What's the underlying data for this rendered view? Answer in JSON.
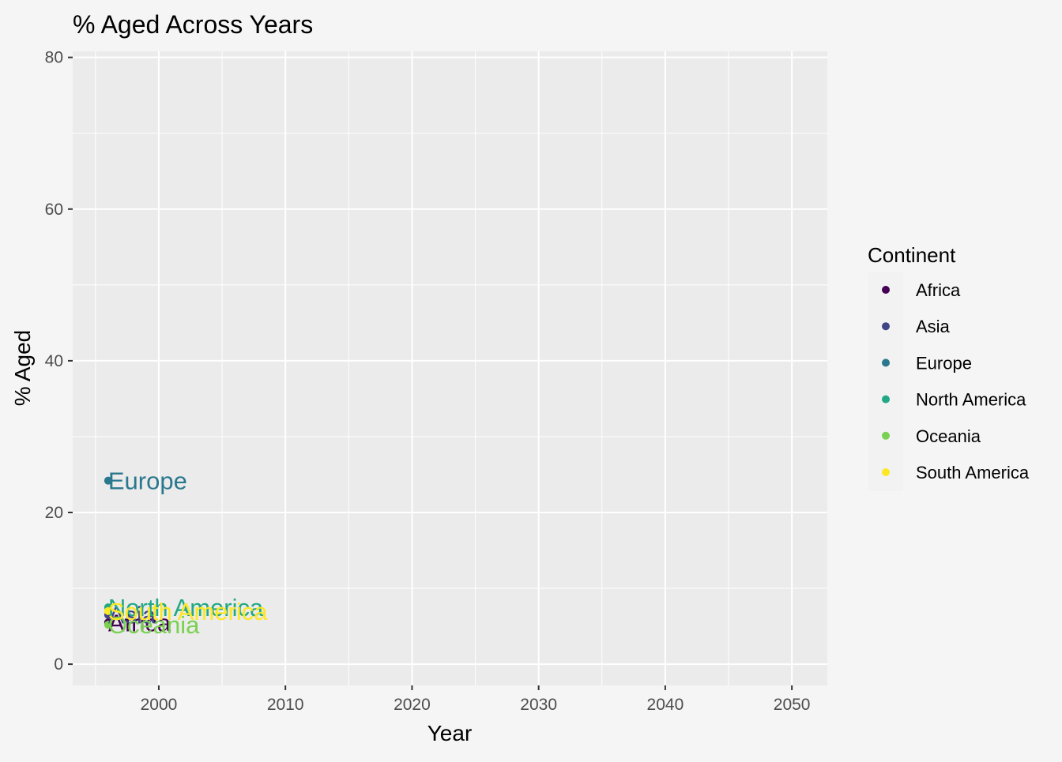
{
  "chart_data": {
    "type": "scatter",
    "title": "% Aged Across Years",
    "xlabel": "Year",
    "ylabel": "% Aged",
    "xlim": [
      1993.2,
      2052.8
    ],
    "ylim": [
      -2.8,
      80.8
    ],
    "x_ticks": [
      2000,
      2010,
      2020,
      2030,
      2040,
      2050
    ],
    "y_ticks": [
      0,
      20,
      40,
      60,
      80
    ],
    "x_minor_ticks": [
      1995,
      2005,
      2015,
      2025,
      2035,
      2045
    ],
    "y_minor_ticks": [
      10,
      30,
      50,
      70
    ],
    "grid": true,
    "legend": {
      "title": "Continent",
      "position": "right"
    },
    "series": [
      {
        "name": "Africa",
        "color": "#440154",
        "points": [
          {
            "x": 1996,
            "y": 5.5
          }
        ],
        "label": "Africa"
      },
      {
        "name": "Asia",
        "color": "#414487",
        "points": [
          {
            "x": 1996,
            "y": 6.5
          }
        ],
        "label": "Asia"
      },
      {
        "name": "Europe",
        "color": "#2A788E",
        "points": [
          {
            "x": 1996,
            "y": 24.2
          }
        ],
        "label": "Europe"
      },
      {
        "name": "North America",
        "color": "#22A884",
        "points": [
          {
            "x": 1996,
            "y": 7.5
          }
        ],
        "label": "North America"
      },
      {
        "name": "Oceania",
        "color": "#7AD151",
        "points": [
          {
            "x": 1996,
            "y": 5.2
          }
        ],
        "label": "Oceania"
      },
      {
        "name": "South America",
        "color": "#FDE725",
        "points": [
          {
            "x": 1996,
            "y": 7.0
          }
        ],
        "label": "South America"
      }
    ]
  }
}
